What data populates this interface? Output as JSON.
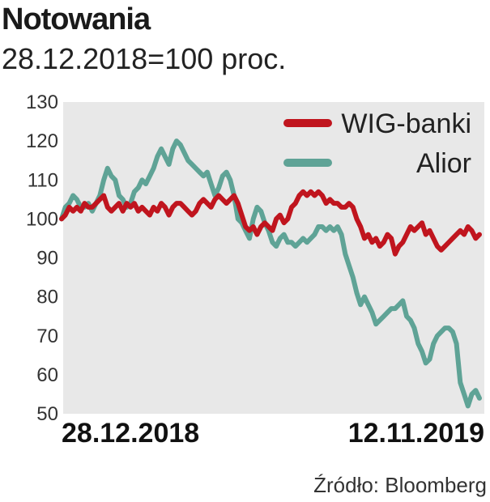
{
  "header": {
    "title": "Notowania",
    "subtitle": "28.12.2018=100 proc."
  },
  "footer": {
    "source": "Źródło: Bloomberg"
  },
  "chart_data": {
    "type": "line",
    "title": "Notowania",
    "subtitle": "28.12.2018=100 proc.",
    "xlabel": "",
    "ylabel": "",
    "ylim": [
      50,
      130
    ],
    "yticks": [
      "130",
      "120",
      "110",
      "100",
      "90",
      "80",
      "70",
      "60",
      "50"
    ],
    "x_tick_labels": [
      "28.12.2018",
      "12.11.2019"
    ],
    "grid": false,
    "legend": "top-right",
    "background": "#e8e8e8",
    "series": [
      {
        "name": "WIG-banki",
        "color": "#c0151e",
        "values": [
          100,
          101,
          103,
          102,
          103,
          102,
          104,
          103,
          103,
          104,
          105,
          106,
          103,
          102,
          103,
          104,
          102,
          104,
          103,
          104,
          102,
          103,
          102,
          101,
          103,
          102,
          104,
          103,
          101,
          103,
          104,
          104,
          103,
          102,
          101,
          102,
          104,
          105,
          104,
          103,
          105,
          106,
          105,
          104,
          105,
          106,
          104,
          101,
          98,
          97,
          98,
          96,
          98,
          99,
          98,
          97,
          100,
          101,
          99,
          100,
          103,
          104,
          106,
          107,
          106,
          107,
          106,
          107,
          106,
          104,
          105,
          104,
          104,
          103,
          103,
          104,
          103,
          100,
          98,
          95,
          96,
          94,
          95,
          93,
          94,
          96,
          95,
          91,
          93,
          94,
          96,
          98,
          97,
          98,
          99,
          96,
          97,
          95,
          93,
          92,
          93,
          94,
          95,
          96,
          97,
          96,
          98,
          97,
          95,
          96
        ]
      },
      {
        "name": "Alior",
        "color": "#5fa396",
        "values": [
          100,
          103,
          104,
          106,
          105,
          103,
          103,
          104,
          102,
          104,
          106,
          110,
          113,
          111,
          110,
          106,
          105,
          103,
          104,
          107,
          108,
          110,
          109,
          111,
          113,
          116,
          118,
          116,
          114,
          118,
          120,
          119,
          117,
          115,
          114,
          113,
          112,
          111,
          112,
          109,
          106,
          108,
          111,
          112,
          110,
          106,
          100,
          99,
          97,
          95,
          100,
          103,
          102,
          99,
          97,
          94,
          93,
          95,
          96,
          94,
          94,
          93,
          94,
          95,
          94,
          95,
          96,
          98,
          98,
          97,
          98,
          97,
          98,
          96,
          91,
          88,
          85,
          81,
          78,
          80,
          78,
          76,
          73,
          74,
          75,
          76,
          77,
          77,
          78,
          79,
          75,
          74,
          72,
          68,
          66,
          63,
          64,
          68,
          70,
          71,
          72,
          72,
          71,
          68,
          58,
          55,
          52,
          55,
          56,
          54
        ]
      }
    ]
  }
}
